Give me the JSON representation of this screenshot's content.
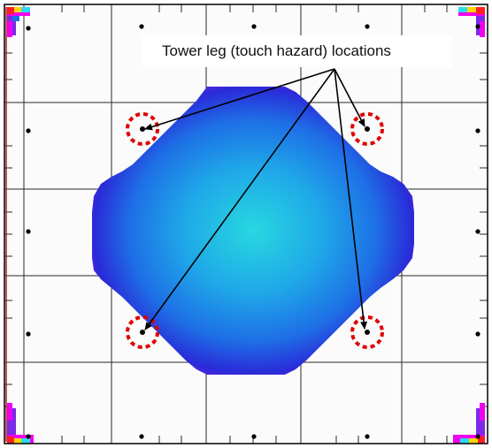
{
  "figure": {
    "annotation": "Tower leg (touch hazard) locations",
    "colors": {
      "background": "#fbfbfb",
      "grid": "#2a2a2a",
      "plot_border": "#000000",
      "edge_line": "#b22222",
      "heat_center": "#27d8e0",
      "heat_mid": "#1e7fe6",
      "heat_low": "#2a2ad8",
      "heat_edge": "#f000f0",
      "hazard_circle": "#e00000",
      "arrow": "#000000",
      "dots": "#000000"
    }
  }
}
